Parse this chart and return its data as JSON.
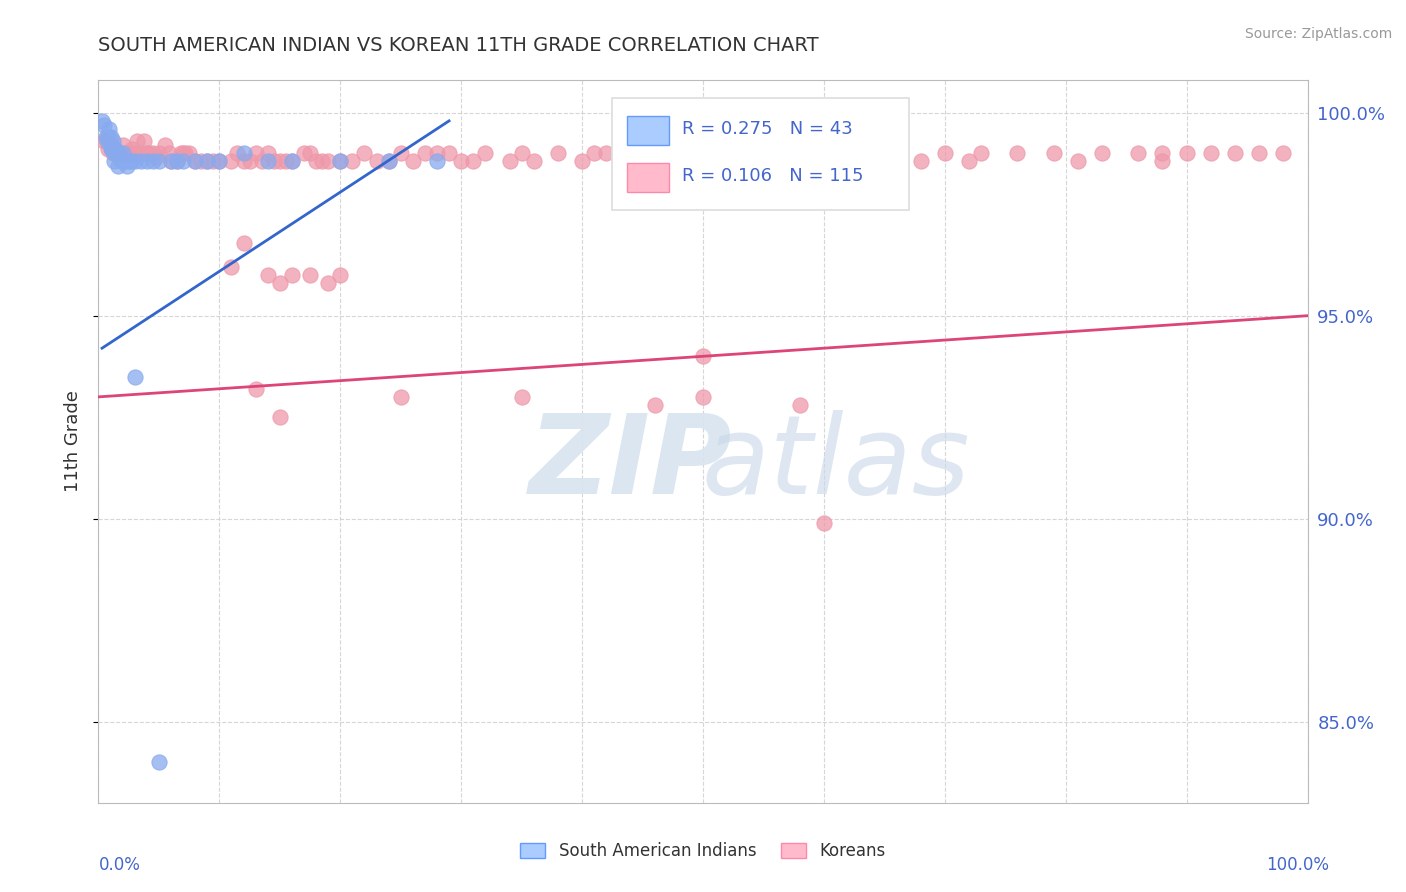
{
  "title": "SOUTH AMERICAN INDIAN VS KOREAN 11TH GRADE CORRELATION CHART",
  "source_text": "Source: ZipAtlas.com",
  "ylabel": "11th Grade",
  "ytick_labels": [
    "85.0%",
    "90.0%",
    "95.0%",
    "100.0%"
  ],
  "ytick_values": [
    0.85,
    0.9,
    0.95,
    1.0
  ],
  "blue_color": "#88aaee",
  "pink_color": "#ee99aa",
  "trend_blue_color": "#3366cc",
  "trend_pink_color": "#dd4477",
  "grid_color": "#cccccc",
  "text_color": "#4466cc",
  "blue_scatter_x": [
    0.003,
    0.005,
    0.006,
    0.007,
    0.008,
    0.009,
    0.01,
    0.01,
    0.011,
    0.012,
    0.012,
    0.013,
    0.014,
    0.014,
    0.015,
    0.016,
    0.017,
    0.018,
    0.019,
    0.02,
    0.022,
    0.024,
    0.025,
    0.027,
    0.03,
    0.035,
    0.04,
    0.045,
    0.05,
    0.06,
    0.065,
    0.07,
    0.08,
    0.09,
    0.1,
    0.12,
    0.14,
    0.16,
    0.2,
    0.24,
    0.28,
    0.03,
    0.05
  ],
  "blue_scatter_y": [
    0.998,
    0.997,
    0.994,
    0.993,
    0.994,
    0.996,
    0.994,
    0.991,
    0.991,
    0.991,
    0.993,
    0.988,
    0.991,
    0.99,
    0.99,
    0.987,
    0.99,
    0.989,
    0.988,
    0.99,
    0.988,
    0.987,
    0.988,
    0.988,
    0.988,
    0.988,
    0.988,
    0.988,
    0.988,
    0.988,
    0.988,
    0.988,
    0.988,
    0.988,
    0.988,
    0.99,
    0.988,
    0.988,
    0.988,
    0.988,
    0.988,
    0.935,
    0.84
  ],
  "pink_scatter_x": [
    0.005,
    0.008,
    0.01,
    0.012,
    0.014,
    0.016,
    0.018,
    0.02,
    0.022,
    0.025,
    0.028,
    0.03,
    0.032,
    0.035,
    0.038,
    0.04,
    0.042,
    0.045,
    0.048,
    0.05,
    0.055,
    0.058,
    0.06,
    0.065,
    0.068,
    0.07,
    0.072,
    0.075,
    0.08,
    0.085,
    0.09,
    0.095,
    0.1,
    0.11,
    0.115,
    0.12,
    0.125,
    0.13,
    0.135,
    0.14,
    0.145,
    0.15,
    0.155,
    0.16,
    0.17,
    0.175,
    0.18,
    0.185,
    0.19,
    0.2,
    0.21,
    0.22,
    0.23,
    0.24,
    0.25,
    0.26,
    0.27,
    0.28,
    0.29,
    0.3,
    0.31,
    0.32,
    0.34,
    0.35,
    0.36,
    0.38,
    0.4,
    0.41,
    0.42,
    0.44,
    0.46,
    0.48,
    0.5,
    0.51,
    0.52,
    0.54,
    0.56,
    0.58,
    0.6,
    0.62,
    0.64,
    0.65,
    0.68,
    0.7,
    0.72,
    0.73,
    0.76,
    0.79,
    0.81,
    0.83,
    0.86,
    0.88,
    0.88,
    0.9,
    0.92,
    0.94,
    0.96,
    0.98,
    0.5,
    0.6,
    0.11,
    0.12,
    0.14,
    0.15,
    0.16,
    0.175,
    0.19,
    0.2,
    0.13,
    0.15,
    0.25,
    0.35,
    0.46,
    0.5,
    0.58
  ],
  "pink_scatter_y": [
    0.993,
    0.991,
    0.992,
    0.99,
    0.99,
    0.99,
    0.99,
    0.992,
    0.99,
    0.99,
    0.991,
    0.99,
    0.993,
    0.99,
    0.993,
    0.99,
    0.99,
    0.99,
    0.989,
    0.99,
    0.992,
    0.99,
    0.988,
    0.988,
    0.99,
    0.99,
    0.99,
    0.99,
    0.988,
    0.988,
    0.988,
    0.988,
    0.988,
    0.988,
    0.99,
    0.988,
    0.988,
    0.99,
    0.988,
    0.99,
    0.988,
    0.988,
    0.988,
    0.988,
    0.99,
    0.99,
    0.988,
    0.988,
    0.988,
    0.988,
    0.988,
    0.99,
    0.988,
    0.988,
    0.99,
    0.988,
    0.99,
    0.99,
    0.99,
    0.988,
    0.988,
    0.99,
    0.988,
    0.99,
    0.988,
    0.99,
    0.988,
    0.99,
    0.99,
    0.99,
    0.99,
    0.99,
    0.99,
    0.99,
    0.99,
    0.988,
    0.99,
    0.988,
    0.99,
    0.988,
    0.99,
    0.99,
    0.988,
    0.99,
    0.988,
    0.99,
    0.99,
    0.99,
    0.988,
    0.99,
    0.99,
    0.99,
    0.988,
    0.99,
    0.99,
    0.99,
    0.99,
    0.99,
    0.94,
    0.899,
    0.962,
    0.968,
    0.96,
    0.958,
    0.96,
    0.96,
    0.958,
    0.96,
    0.932,
    0.925,
    0.93,
    0.93,
    0.928,
    0.93,
    0.928
  ],
  "blue_trend_x": [
    0.003,
    0.29
  ],
  "blue_trend_y": [
    0.942,
    0.998
  ],
  "pink_trend_x": [
    0.0,
    1.0
  ],
  "pink_trend_y": [
    0.93,
    0.95
  ],
  "xlim": [
    0.0,
    1.0
  ],
  "ylim": [
    0.83,
    1.008
  ],
  "figsize": [
    14.06,
    8.92
  ],
  "dpi": 100
}
